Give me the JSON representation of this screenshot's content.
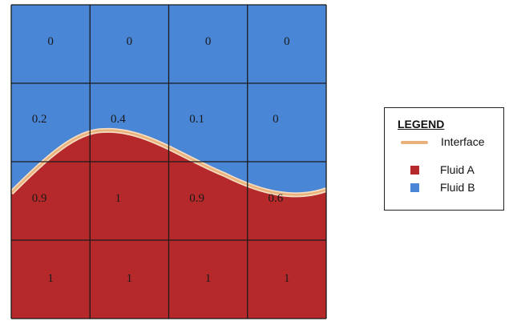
{
  "grid": {
    "rows": [
      [
        "0",
        "0",
        "0",
        "0"
      ],
      [
        "0.2",
        "0.4",
        "0.1",
        "0"
      ],
      [
        "0.9",
        "1",
        "0.9",
        "0.6"
      ],
      [
        "1",
        "1",
        "1",
        "1"
      ]
    ]
  },
  "legend": {
    "title": "LEGEND",
    "items": [
      {
        "label": "Interface",
        "kind": "line",
        "color": "#e8b27a"
      },
      {
        "label": "Fluid A",
        "kind": "swatch",
        "color": "#b5292b"
      },
      {
        "label": "Fluid B",
        "kind": "swatch",
        "color": "#4a86d6"
      }
    ]
  },
  "colors": {
    "fluid_a": "#b5292b",
    "fluid_b": "#4a86d6",
    "interface": "#e8b27a",
    "grid_line": "#1a1a1a"
  }
}
